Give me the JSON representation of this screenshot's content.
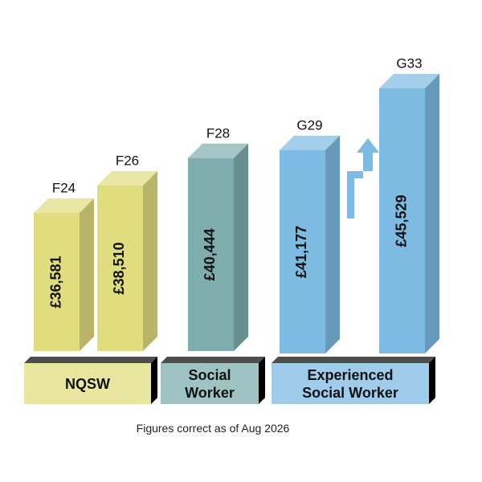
{
  "chart_data": {
    "type": "bar3d",
    "groups": [
      {
        "label": "NQSW",
        "color": "#e0dd7f",
        "categories": [
          "F24",
          "F26"
        ],
        "values": [
          36581,
          38510
        ],
        "value_labels": [
          "£36,581",
          "£38,510"
        ]
      },
      {
        "label": "Social Worker",
        "color": "#7fadad",
        "categories": [
          "F28"
        ],
        "values": [
          40444
        ],
        "value_labels": [
          "£40,444"
        ]
      },
      {
        "label": "Experienced Social Worker",
        "color": "#7dbbe3",
        "categories": [
          "G29",
          "G33"
        ],
        "values": [
          41177,
          45529
        ],
        "value_labels": [
          "£41,177",
          "£45,529"
        ]
      }
    ],
    "note": "Figures correct as of Aug 2026"
  }
}
